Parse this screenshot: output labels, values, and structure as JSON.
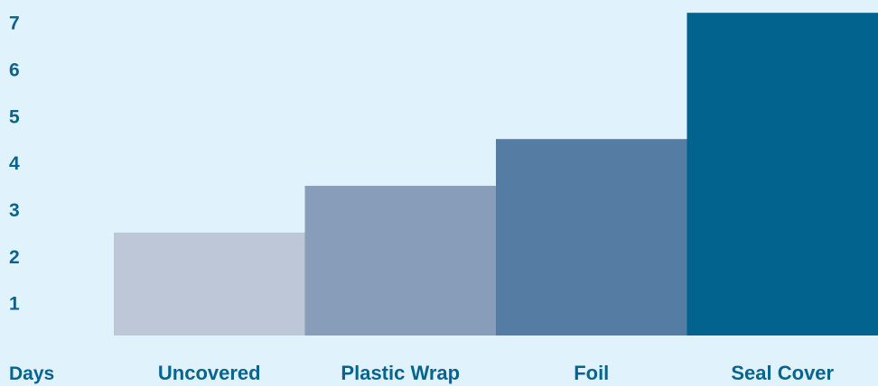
{
  "chart_data": {
    "type": "bar",
    "title": "",
    "xlabel": "",
    "ylabel": "Days",
    "categories": [
      "Uncovered",
      "Plastic Wrap",
      "Foil",
      "Seal Cover"
    ],
    "values": [
      2.5,
      3.5,
      4.5,
      7.2
    ],
    "yticks": [
      "1",
      "2",
      "3",
      "4",
      "5",
      "6",
      "7"
    ],
    "ylim": [
      0.3,
      7.3
    ],
    "grid": false,
    "legend": "none",
    "bar_colors": [
      "#bec7d8",
      "#879db9",
      "#557ca2",
      "#02638f"
    ],
    "text_color": "#07638f",
    "background": "#e0f2fb"
  }
}
